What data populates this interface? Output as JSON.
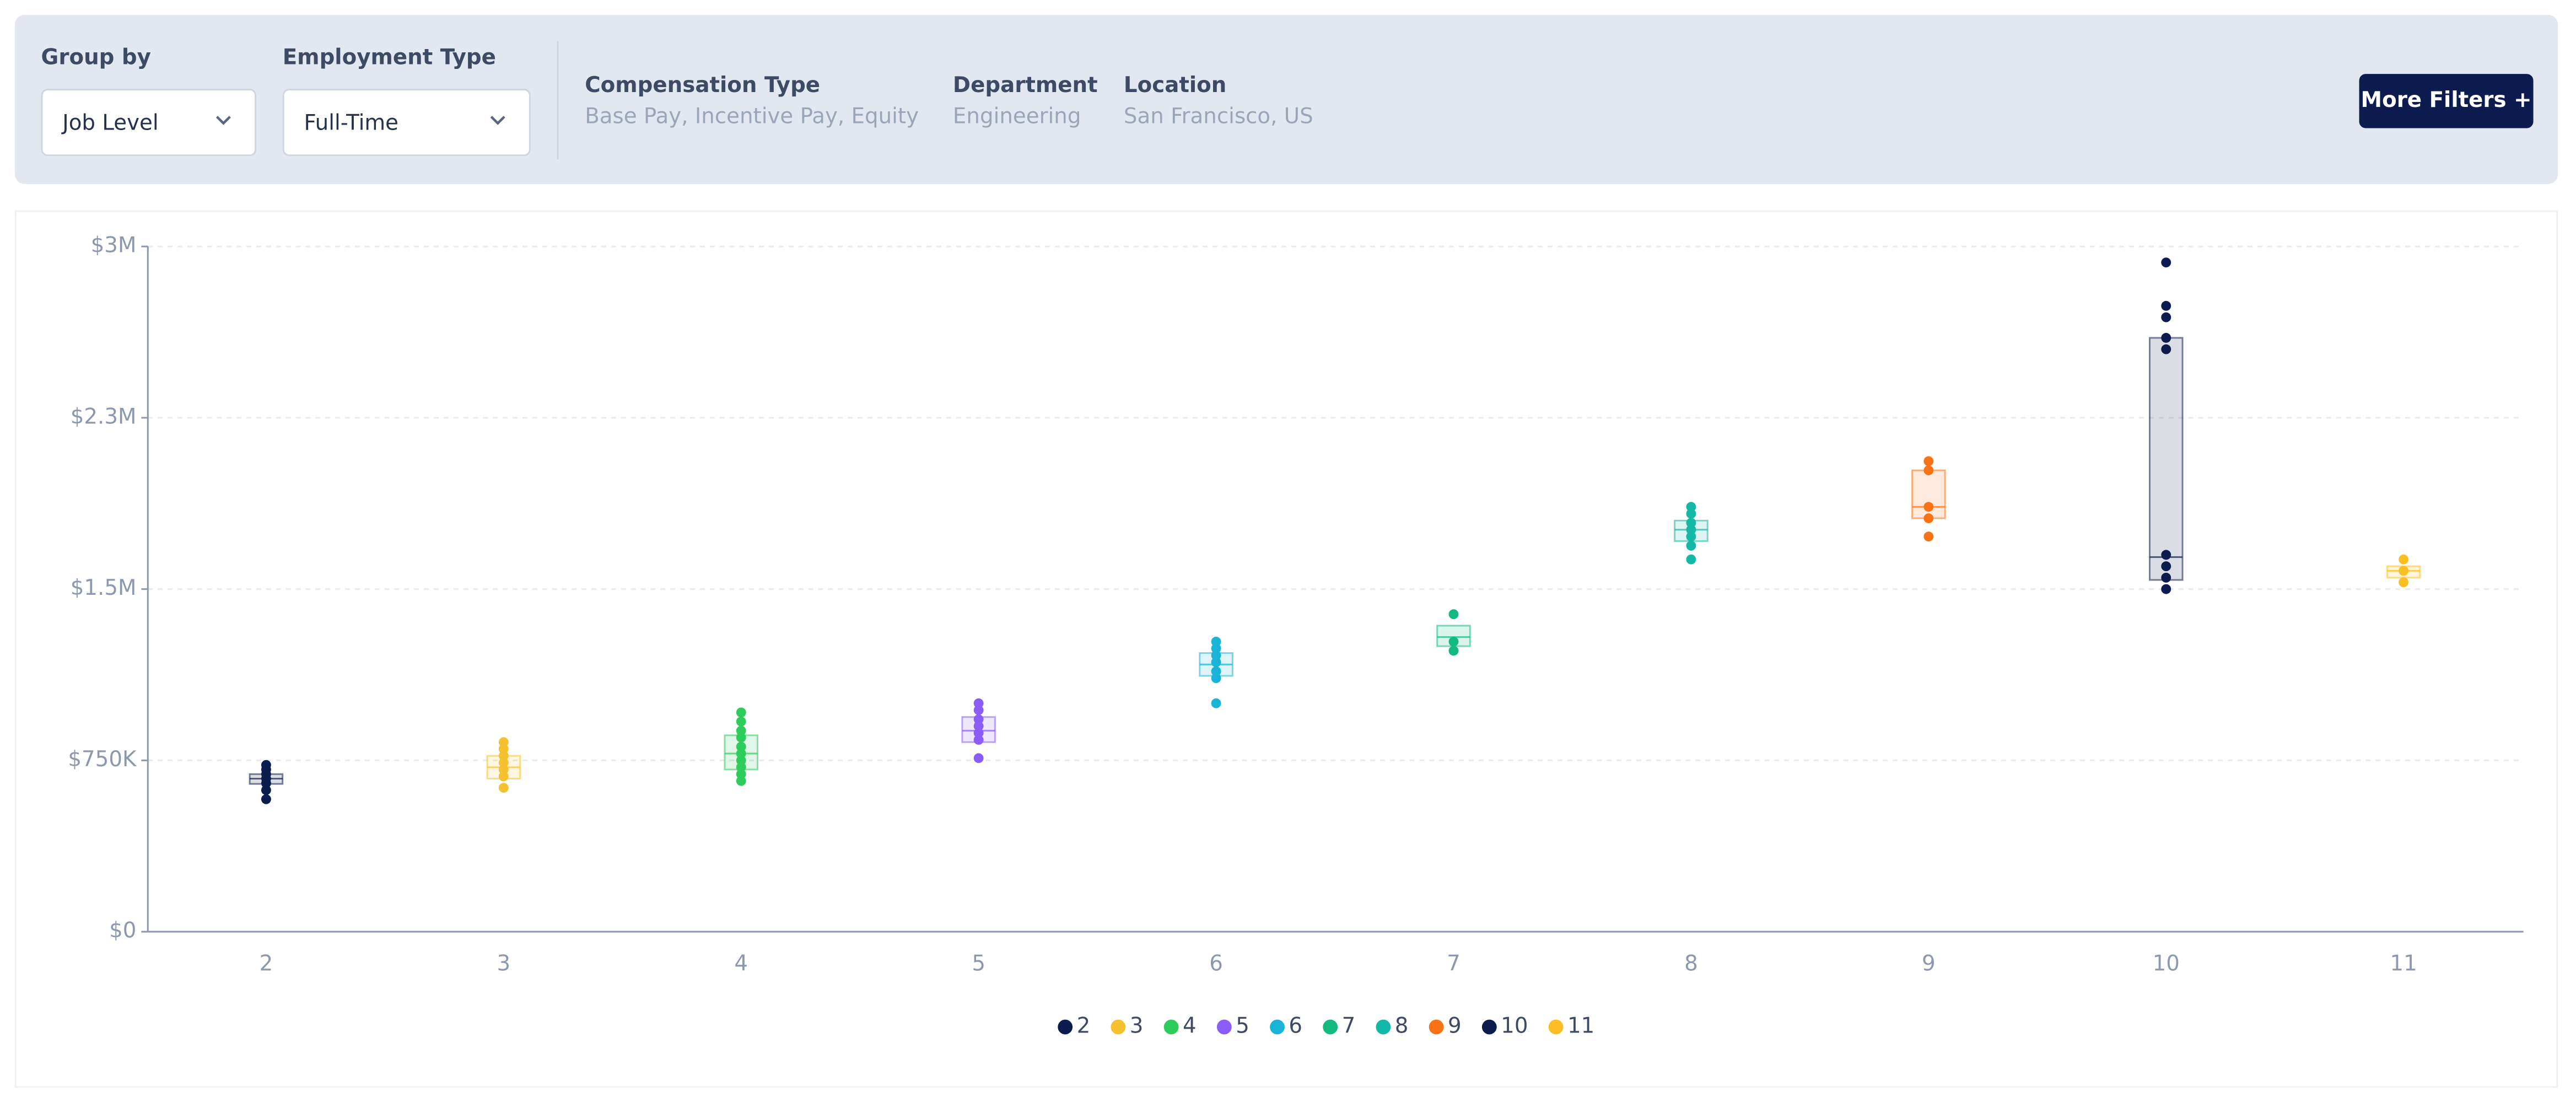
{
  "filters": {
    "group_by": {
      "label": "Group by",
      "value": "Job Level"
    },
    "employment_type": {
      "label": "Employment Type",
      "value": "Full-Time"
    },
    "compensation_type": {
      "label": "Compensation Type",
      "value": "Base Pay, Incentive Pay, Equity"
    },
    "department": {
      "label": "Department",
      "value": "Engineering"
    },
    "location": {
      "label": "Location",
      "value": "San Francisco, US"
    },
    "more_button": "More Filters +"
  },
  "chart_data": {
    "type": "box",
    "categories": [
      "2",
      "3",
      "4",
      "5",
      "6",
      "7",
      "8",
      "9",
      "10",
      "11"
    ],
    "ylim": [
      0,
      3000000
    ],
    "yticks": [
      {
        "value": 0,
        "label": "$0"
      },
      {
        "value": 750000,
        "label": "$750K"
      },
      {
        "value": 1500000,
        "label": "$1.5M"
      },
      {
        "value": 2250000,
        "label": "$2.3M"
      },
      {
        "value": 3000000,
        "label": "$3M"
      }
    ],
    "grid": true,
    "series": [
      {
        "name": "2",
        "color": "#0d1c4f",
        "q1": 647000,
        "median": 670000,
        "q3": 690000,
        "points": [
          730000,
          710000,
          690000,
          670000,
          650000,
          620000,
          580000
        ]
      },
      {
        "name": "3",
        "color": "#f5c12e",
        "q1": 670000,
        "median": 720000,
        "q3": 770000,
        "points": [
          830000,
          800000,
          770000,
          740000,
          710000,
          680000,
          630000
        ]
      },
      {
        "name": "4",
        "color": "#2ecc5b",
        "q1": 710000,
        "median": 780000,
        "q3": 860000,
        "points": [
          960000,
          920000,
          880000,
          850000,
          810000,
          780000,
          750000,
          720000,
          690000,
          660000
        ]
      },
      {
        "name": "5",
        "color": "#8b5cf6",
        "q1": 830000,
        "median": 880000,
        "q3": 940000,
        "points": [
          1000000,
          970000,
          930000,
          900000,
          870000,
          840000,
          760000
        ]
      },
      {
        "name": "6",
        "color": "#1ab3d8",
        "q1": 1120000,
        "median": 1170000,
        "q3": 1220000,
        "points": [
          1270000,
          1240000,
          1210000,
          1180000,
          1140000,
          1110000,
          1000000
        ]
      },
      {
        "name": "7",
        "color": "#13b97e",
        "q1": 1250000,
        "median": 1290000,
        "q3": 1340000,
        "points": [
          1390000,
          1270000,
          1230000
        ]
      },
      {
        "name": "8",
        "color": "#14b8a6",
        "q1": 1710000,
        "median": 1760000,
        "q3": 1800000,
        "points": [
          1860000,
          1830000,
          1790000,
          1760000,
          1730000,
          1690000,
          1630000
        ]
      },
      {
        "name": "9",
        "color": "#f97316",
        "q1": 1810000,
        "median": 1860000,
        "q3": 2020000,
        "points": [
          2060000,
          2020000,
          1860000,
          1810000,
          1730000
        ]
      },
      {
        "name": "10",
        "color": "#0d1c4f",
        "q1": 1540000,
        "median": 1640000,
        "q3": 2600000,
        "points": [
          2930000,
          2740000,
          2690000,
          2600000,
          2550000,
          1650000,
          1600000,
          1550000,
          1500000
        ]
      },
      {
        "name": "11",
        "color": "#fbbf24",
        "q1": 1550000,
        "median": 1580000,
        "q3": 1600000,
        "points": [
          1630000,
          1580000,
          1530000
        ]
      }
    ]
  }
}
